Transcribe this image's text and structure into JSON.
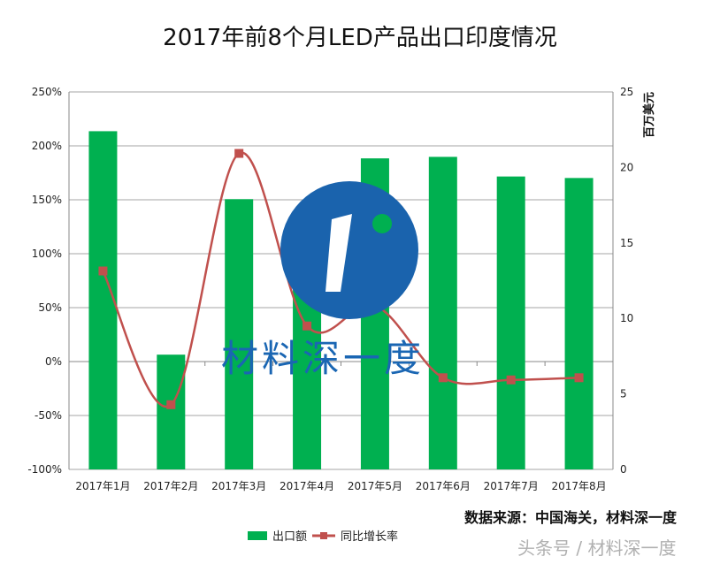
{
  "title": "2017年前8个月LED产品出口印度情况",
  "chart_data": {
    "type": "bar+line",
    "title": "2017年前8个月LED产品出口印度情况",
    "categories": [
      "2017年1月",
      "2017年2月",
      "2017年3月",
      "2017年4月",
      "2017年5月",
      "2017年6月",
      "2017年7月",
      "2017年8月"
    ],
    "series": [
      {
        "name": "出口额",
        "type": "bar",
        "axis": "right",
        "color": "#00b050",
        "values": [
          22.4,
          7.6,
          17.9,
          12.0,
          20.6,
          20.7,
          19.4,
          19.3
        ]
      },
      {
        "name": "同比增长率",
        "type": "line",
        "axis": "left",
        "color": "#c0504d",
        "values": [
          84,
          -40,
          193,
          33,
          52,
          -15,
          -17,
          -15
        ]
      }
    ],
    "left_axis": {
      "ylim": [
        -100,
        250
      ],
      "ticks": [
        "-100%",
        "-50%",
        "0%",
        "50%",
        "100%",
        "150%",
        "200%",
        "250%"
      ]
    },
    "right_axis": {
      "label": "百万美元",
      "ylim": [
        0,
        25
      ],
      "ticks": [
        "0",
        "5",
        "10",
        "15",
        "20",
        "25"
      ]
    },
    "grid": true,
    "legend": "bottom"
  },
  "source": "数据来源：中国海关，材料深一度",
  "watermark": "头条号 / 材料深一度",
  "logo_text": "材料深一度"
}
